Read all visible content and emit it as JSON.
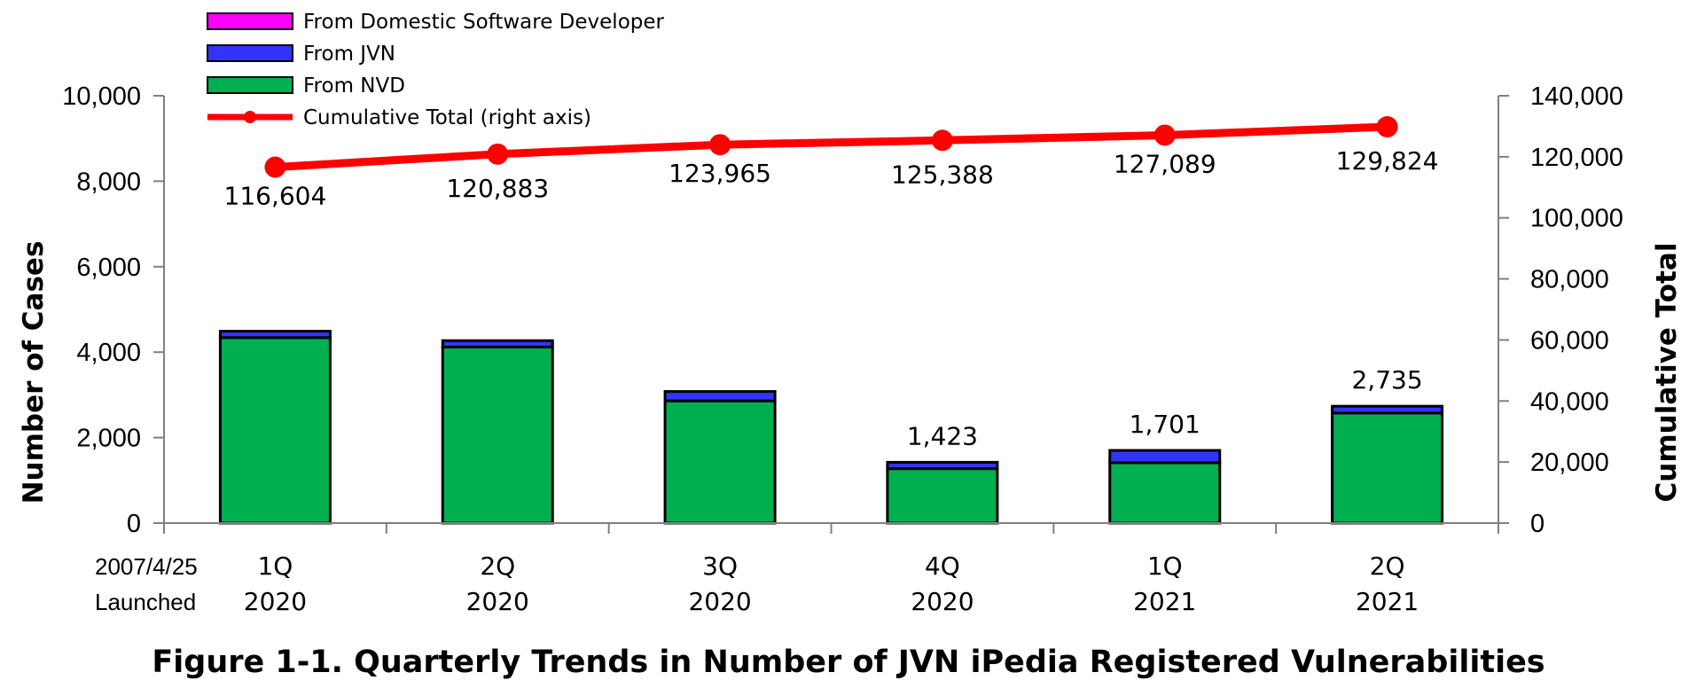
{
  "chart_data": {
    "type": "bar",
    "title": "Figure 1-1. Quarterly Trends in Number of JVN iPedia Registered Vulnerabilities",
    "ylabel": "Number of Cases",
    "y2label": "Cumulative Total",
    "ylim": [
      0,
      10000
    ],
    "y2lim": [
      0,
      140000
    ],
    "yticks": [
      "0",
      "2,000",
      "4,000",
      "6,000",
      "8,000",
      "10,000"
    ],
    "y2ticks": [
      "0",
      "20,000",
      "40,000",
      "60,000",
      "80,000",
      "100,000",
      "120,000",
      "140,000"
    ],
    "launch_note": [
      "2007/4/25",
      "Launched"
    ],
    "categories": [
      {
        "quarter": "1Q",
        "year": "2020"
      },
      {
        "quarter": "2Q",
        "year": "2020"
      },
      {
        "quarter": "3Q",
        "year": "2020"
      },
      {
        "quarter": "4Q",
        "year": "2020"
      },
      {
        "quarter": "1Q",
        "year": "2021"
      },
      {
        "quarter": "2Q",
        "year": "2021"
      }
    ],
    "series": [
      {
        "name": "From Domestic Software Developer",
        "type": "bar",
        "color": "#ff00ff",
        "values": [
          0,
          0,
          0,
          0,
          0,
          0
        ]
      },
      {
        "name": "From JVN",
        "type": "bar",
        "color": "#3333ff",
        "values": [
          150,
          150,
          220,
          150,
          290,
          160
        ]
      },
      {
        "name": "From NVD",
        "type": "bar",
        "color": "#00b050",
        "values": [
          4340,
          4120,
          2860,
          1273,
          1411,
          2575
        ]
      },
      {
        "name": "Cumulative Total (right axis)",
        "type": "line",
        "axis": "right",
        "color": "#ff0000",
        "values": [
          116604,
          120883,
          123965,
          125388,
          127089,
          129824
        ],
        "labels": [
          "116,604",
          "120,883",
          "123,965",
          "125,388",
          "127,089",
          "129,824"
        ]
      }
    ],
    "bar_totals": [
      "",
      "",
      "",
      "1,423",
      "1,701",
      "2,735"
    ],
    "legend_position": "top-left",
    "grid": false
  }
}
